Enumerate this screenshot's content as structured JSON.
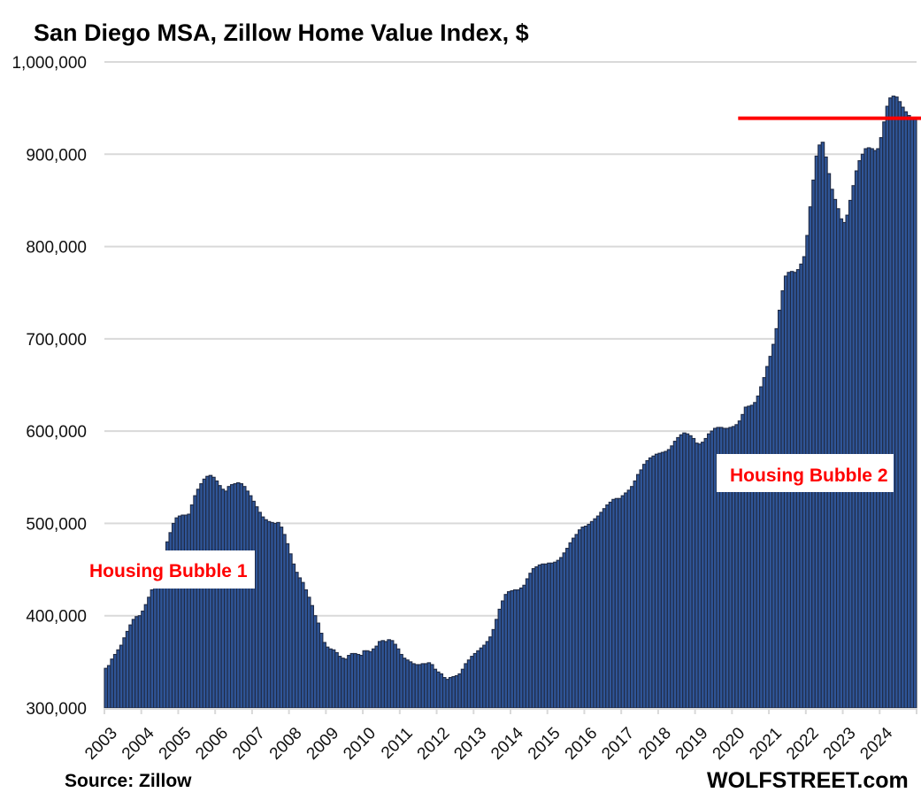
{
  "chart_data": {
    "type": "bar",
    "title": "San Diego MSA, Zillow Home Value Index, $",
    "xlabel": "",
    "ylabel": "",
    "ylim": [
      300000,
      1000000
    ],
    "yticks": [
      300000,
      400000,
      500000,
      600000,
      700000,
      800000,
      900000,
      1000000
    ],
    "ytick_labels": [
      "300,000",
      "400,000",
      "500,000",
      "600,000",
      "700,000",
      "800,000",
      "900,000",
      "1,000,000"
    ],
    "xtick_labels": [
      "2003",
      "2004",
      "2005",
      "2006",
      "2007",
      "2008",
      "2009",
      "2010",
      "2011",
      "2012",
      "2013",
      "2014",
      "2015",
      "2016",
      "2017",
      "2018",
      "2019",
      "2020",
      "2021",
      "2022",
      "2023",
      "2024"
    ],
    "grid": true,
    "frequency": "monthly",
    "start": "2003-01",
    "end": "2024-12",
    "series": [
      {
        "name": "Zillow Home Value Index",
        "color": "#2f5597",
        "values": [
          343000,
          346000,
          353000,
          358000,
          363000,
          368000,
          376000,
          383000,
          390000,
          396000,
          399000,
          400000,
          405000,
          412000,
          420000,
          428000,
          436000,
          445000,
          457000,
          470000,
          480000,
          490000,
          500000,
          506000,
          508000,
          509000,
          509000,
          510000,
          520000,
          530000,
          537000,
          543000,
          548000,
          551000,
          552000,
          550000,
          546000,
          541000,
          537000,
          535000,
          540000,
          542000,
          543000,
          544000,
          543000,
          540000,
          535000,
          530000,
          524000,
          518000,
          512000,
          507000,
          504000,
          502000,
          501000,
          500000,
          501000,
          496000,
          488000,
          478000,
          467000,
          456000,
          447000,
          441000,
          436000,
          428000,
          420000,
          411000,
          400000,
          392000,
          381000,
          371000,
          366000,
          364000,
          363000,
          360000,
          356000,
          354000,
          353000,
          357000,
          359000,
          359000,
          358000,
          357000,
          362000,
          362000,
          361000,
          364000,
          367000,
          372000,
          373000,
          372000,
          374000,
          373000,
          369000,
          364000,
          358000,
          354000,
          352000,
          350000,
          348000,
          347000,
          347000,
          348000,
          348000,
          349000,
          347000,
          342000,
          339000,
          337000,
          333000,
          331000,
          333000,
          334000,
          335000,
          337000,
          342000,
          348000,
          352000,
          356000,
          359000,
          362000,
          365000,
          368000,
          372000,
          377000,
          385000,
          396000,
          407000,
          416000,
          423000,
          426000,
          427000,
          428000,
          428000,
          430000,
          433000,
          440000,
          446000,
          451000,
          453000,
          455000,
          456000,
          456000,
          457000,
          457000,
          458000,
          460000,
          463000,
          468000,
          473000,
          479000,
          484000,
          488000,
          493000,
          496000,
          497000,
          499000,
          502000,
          505000,
          508000,
          512000,
          516000,
          520000,
          523000,
          526000,
          527000,
          527000,
          530000,
          533000,
          536000,
          540000,
          546000,
          553000,
          558000,
          564000,
          568000,
          571000,
          573000,
          575000,
          576000,
          577000,
          578000,
          580000,
          584000,
          589000,
          593000,
          596000,
          598000,
          597000,
          595000,
          592000,
          587000,
          586000,
          588000,
          592000,
          597000,
          600000,
          603000,
          604000,
          604000,
          603000,
          603000,
          604000,
          605000,
          607000,
          611000,
          618000,
          626000,
          627000,
          628000,
          631000,
          638000,
          648000,
          658000,
          670000,
          681000,
          694000,
          711000,
          731000,
          752000,
          768000,
          772000,
          773000,
          772000,
          775000,
          781000,
          789000,
          812000,
          843000,
          872000,
          898000,
          910000,
          913000,
          897000,
          879000,
          862000,
          851000,
          841000,
          830000,
          826000,
          834000,
          850000,
          866000,
          882000,
          893000,
          900000,
          906000,
          907000,
          906000,
          904000,
          906000,
          918000,
          935000,
          952000,
          961000,
          963000,
          962000,
          957000,
          951000,
          946000,
          942000,
          940000,
          939000
        ]
      }
    ],
    "reference_line": {
      "value": 939000,
      "color": "#ff0000",
      "from": "2020-03",
      "to": "2024-12"
    },
    "annotations": [
      {
        "text": "Housing Bubble 1",
        "near": "2005"
      },
      {
        "text": "Housing Bubble 2",
        "near": "2022"
      }
    ]
  },
  "footer": {
    "source": "Source: Zillow",
    "brand": "WOLFSTREET.com"
  }
}
